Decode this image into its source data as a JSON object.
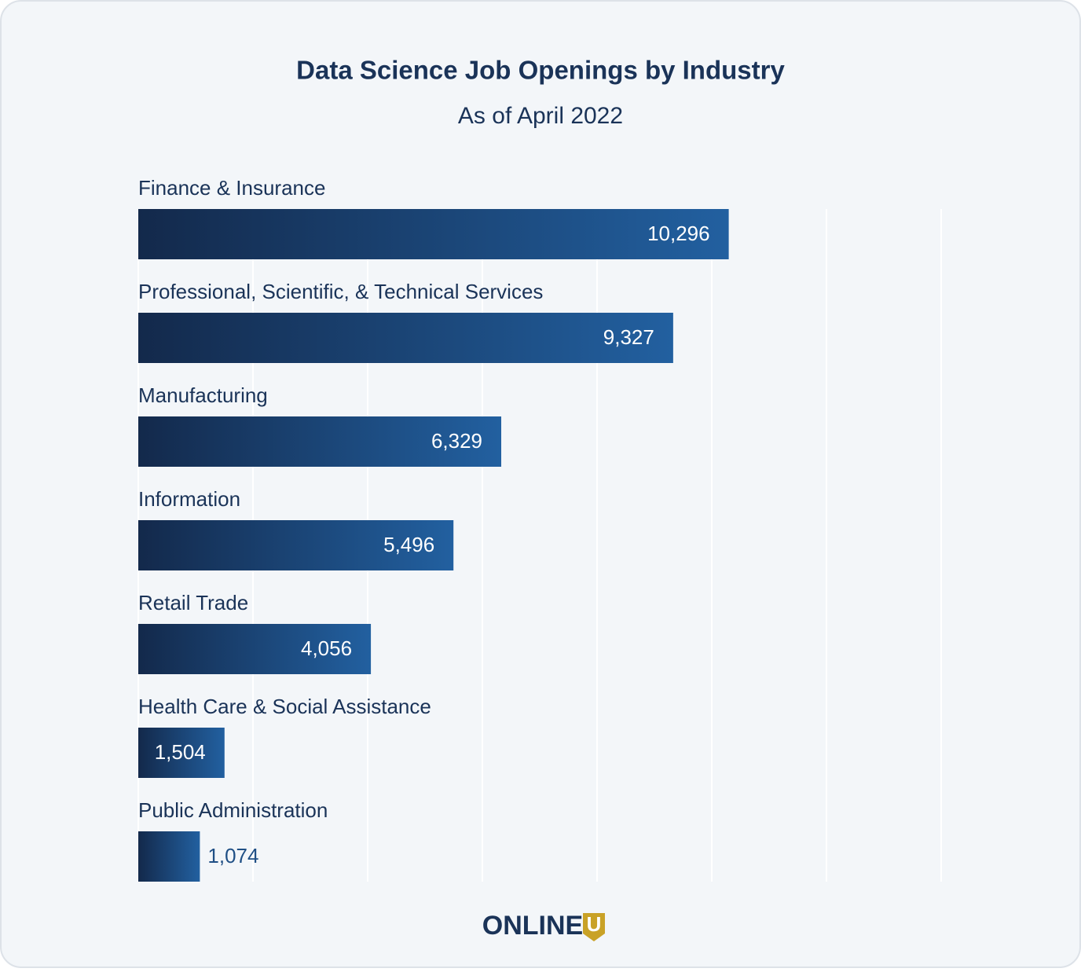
{
  "chart_data": {
    "type": "bar",
    "orientation": "horizontal",
    "title": "Data Science Job Openings by Industry",
    "subtitle": "As of April 2022",
    "categories": [
      "Finance & Insurance",
      "Professional, Scientific, & Technical Services",
      "Manufacturing",
      "Information",
      "Retail Trade",
      "Health Care & Social Assistance",
      "Public Administration"
    ],
    "values": [
      10296,
      9327,
      6329,
      5496,
      4056,
      1504,
      1074
    ],
    "value_labels": [
      "10,296",
      "9,327",
      "6,329",
      "5,496",
      "4,056",
      "1,504",
      "1,074"
    ],
    "color": [
      "#13294b",
      "#2260a0"
    ],
    "xlim": [
      0,
      14000
    ],
    "xticks": [
      0,
      2000,
      4000,
      6000,
      8000,
      10000,
      12000,
      14000
    ],
    "grid": true
  },
  "footer": {
    "logo": "ONLINE",
    "logo_badge": "U"
  }
}
